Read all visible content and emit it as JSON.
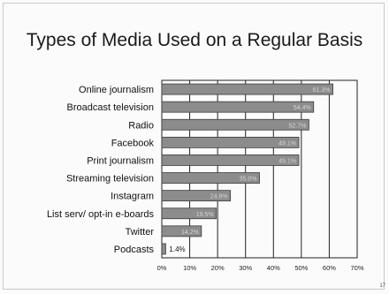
{
  "slide": {
    "title": "Types of Media Used on a Regular Basis",
    "page_number": "17"
  },
  "chart_data": {
    "type": "bar",
    "orientation": "horizontal",
    "title": "Types of Media Used on a Regular Basis",
    "xlabel": "",
    "ylabel": "",
    "xlim": [
      0,
      70
    ],
    "x_ticks": [
      "0%",
      "10%",
      "20%",
      "30%",
      "40%",
      "50%",
      "60%",
      "70%"
    ],
    "grid": true,
    "categories": [
      "Online journalism",
      "Broadcast television",
      "Radio",
      "Facebook",
      "Print journalism",
      "Streaming television",
      "Instagram",
      "List serv/ opt-in e-boards",
      "Twitter",
      "Podcasts"
    ],
    "values": [
      61.3,
      54.4,
      52.7,
      49.1,
      49.1,
      35.0,
      24.6,
      19.5,
      14.2,
      1.4
    ],
    "value_labels": [
      "61.3%",
      "54.4%",
      "52.7%",
      "49.1%",
      "49.1%",
      "35.0%",
      "24.6%",
      "19.5%",
      "14.2%",
      "1.4%"
    ],
    "colors": {
      "bar": "#8c8c8c",
      "bar_edge": "#3a3a3a",
      "grid": "#222222",
      "label": "#d6d6d6"
    }
  }
}
